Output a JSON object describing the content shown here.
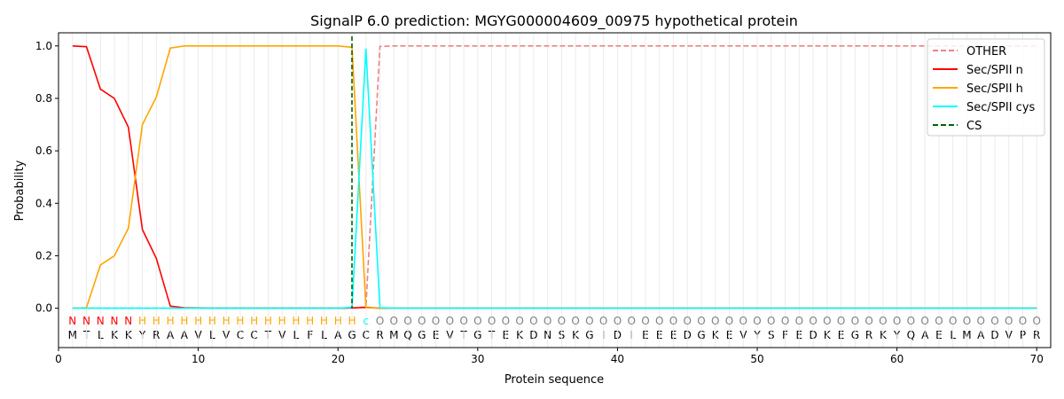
{
  "chart_data": {
    "type": "line",
    "title": "SignalP 6.0 prediction: MGYG000004609_00975 hypothetical protein",
    "xlabel": "Protein sequence",
    "ylabel": "Probability",
    "xlim": [
      0,
      71
    ],
    "ylim": [
      -0.15,
      1.05
    ],
    "xticks": [
      0,
      10,
      20,
      30,
      40,
      50,
      60,
      70
    ],
    "yticks": [
      "0.0",
      "0.2",
      "0.4",
      "0.6",
      "0.8",
      "1.0"
    ],
    "grid": "vertical lines at each residue",
    "legend_position": "top-right",
    "sequence": "MTLKKYRAAVLVCCTVLFLAGCRMQGEVTGTEKDNSKGIDIEEEDGKEVYSFEDKEGRKYQAELMADVPR",
    "labels": "NNNNNHHHHHHHHHHHHHHHHcOOOOOOOOOOOOOOOOOOOOOOOOOOOOOOOOOOOOOOOOOOOOOOOO",
    "label_colors": {
      "N": "#ff0000",
      "H": "#ffa500",
      "c": "#00ffff",
      "O": "#808080"
    },
    "cs_position": 21,
    "series": [
      {
        "name": "OTHER",
        "color": "#f08080",
        "dash": true,
        "values": [
          0,
          0,
          0,
          0,
          0,
          0,
          0,
          0,
          0,
          0,
          0,
          0,
          0,
          0,
          0,
          0,
          0,
          0,
          0,
          0,
          0.001,
          0.005,
          0.998,
          1,
          1,
          1,
          1,
          1,
          1,
          1,
          1,
          1,
          1,
          1,
          1,
          1,
          1,
          1,
          1,
          1,
          1,
          1,
          1,
          1,
          1,
          1,
          1,
          1,
          1,
          1,
          1,
          1,
          1,
          1,
          1,
          1,
          1,
          1,
          1,
          1,
          1,
          1,
          1,
          1,
          1,
          1,
          1,
          1,
          1,
          1
        ]
      },
      {
        "name": "Sec/SPII n",
        "color": "#ff0000",
        "dash": false,
        "values": [
          1.0,
          0.997,
          0.835,
          0.8,
          0.69,
          0.3,
          0.19,
          0.008,
          0.002,
          0.001,
          0,
          0,
          0,
          0,
          0,
          0,
          0,
          0,
          0,
          0,
          0.001,
          0.003,
          0,
          0,
          0,
          0,
          0,
          0,
          0,
          0,
          0,
          0,
          0,
          0,
          0,
          0,
          0,
          0,
          0,
          0,
          0,
          0,
          0,
          0,
          0,
          0,
          0,
          0,
          0,
          0,
          0,
          0,
          0,
          0,
          0,
          0,
          0,
          0,
          0,
          0,
          0,
          0,
          0,
          0,
          0,
          0,
          0,
          0,
          0,
          0
        ]
      },
      {
        "name": "Sec/SPII h",
        "color": "#ffa500",
        "dash": false,
        "values": [
          0,
          0.002,
          0.165,
          0.2,
          0.305,
          0.7,
          0.805,
          0.992,
          1.0,
          1.0,
          1.0,
          1.0,
          1.0,
          1.0,
          1.0,
          1.0,
          1.0,
          1.0,
          1.0,
          1.0,
          0.995,
          0.002,
          0,
          0,
          0,
          0,
          0,
          0,
          0,
          0,
          0,
          0,
          0,
          0,
          0,
          0,
          0,
          0,
          0,
          0,
          0,
          0,
          0,
          0,
          0,
          0,
          0,
          0,
          0,
          0,
          0,
          0,
          0,
          0,
          0,
          0,
          0,
          0,
          0,
          0,
          0,
          0,
          0,
          0,
          0,
          0,
          0,
          0,
          0,
          0
        ]
      },
      {
        "name": "Sec/SPII cys",
        "color": "#00ffff",
        "dash": false,
        "values": [
          0,
          0,
          0,
          0,
          0,
          0,
          0,
          0,
          0,
          0,
          0,
          0,
          0,
          0,
          0,
          0,
          0,
          0,
          0,
          0,
          0.003,
          0.99,
          0.002,
          0,
          0,
          0,
          0,
          0,
          0,
          0,
          0,
          0,
          0,
          0,
          0,
          0,
          0,
          0,
          0,
          0,
          0,
          0,
          0,
          0,
          0,
          0,
          0,
          0,
          0,
          0,
          0,
          0,
          0,
          0,
          0,
          0,
          0,
          0,
          0,
          0,
          0,
          0,
          0,
          0,
          0,
          0,
          0,
          0,
          0,
          0
        ]
      },
      {
        "name": "CS",
        "color": "#006400",
        "dash": true,
        "values": []
      }
    ]
  }
}
